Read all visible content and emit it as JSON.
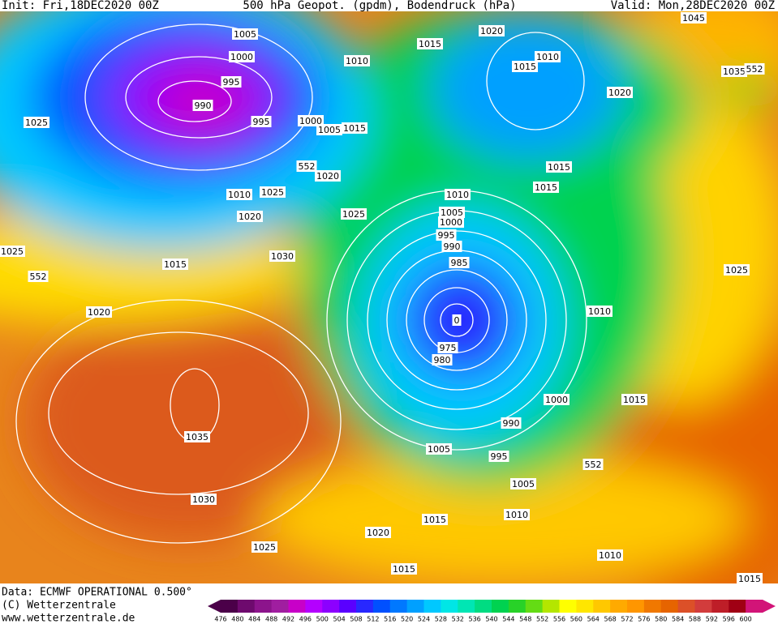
{
  "header": {
    "init": "Init: Fri,18DEC2020 00Z",
    "title": "500 hPa Geopot. (gpdm), Bodendruck (hPa)",
    "valid": "Valid: Mon,28DEC2020 00Z"
  },
  "isobar_labels": [
    1005,
    1000,
    995,
    990,
    995,
    1000,
    1005,
    1015,
    1010,
    1015,
    1020,
    1015,
    1010,
    1020,
    1035,
    552,
    1045,
    1025,
    1010,
    1025,
    1020,
    552,
    1020,
    1025,
    1010,
    1005,
    1000,
    995,
    990,
    985,
    0,
    975,
    980,
    1015,
    1015,
    1025,
    552,
    1015,
    1030,
    1020,
    1010,
    1025,
    1000,
    1015,
    990,
    1005,
    995,
    552,
    1005,
    1035,
    1030,
    1015,
    1010,
    1020,
    1025,
    1010,
    1015,
    1015
  ],
  "legend": {
    "values": [
      476,
      480,
      484,
      488,
      492,
      496,
      500,
      504,
      508,
      512,
      516,
      520,
      524,
      528,
      532,
      536,
      540,
      544,
      548,
      552,
      556,
      560,
      564,
      568,
      572,
      576,
      580,
      584,
      588,
      592,
      596,
      600
    ],
    "colors": [
      "#4b0049",
      "#6e0a6e",
      "#8c148c",
      "#a01ea0",
      "#c800c8",
      "#b400ff",
      "#8c00ff",
      "#5a00ff",
      "#2828ff",
      "#0050ff",
      "#0078ff",
      "#00a0ff",
      "#00c8ff",
      "#00e6e6",
      "#00e6b4",
      "#00dc82",
      "#00d250",
      "#28d228",
      "#64dc14",
      "#b4e600",
      "#ffff00",
      "#ffe600",
      "#ffc800",
      "#ffaa00",
      "#ff9600",
      "#f07800",
      "#e66400",
      "#dc5028",
      "#d23c3c",
      "#be1e28",
      "#a00014",
      "#d21478"
    ]
  },
  "footer": {
    "data": "Data: ECMWF OPERATIONAL 0.500°",
    "copyright": "(C) Wetterzentrale",
    "url": "www.wetterzentrale.de"
  }
}
